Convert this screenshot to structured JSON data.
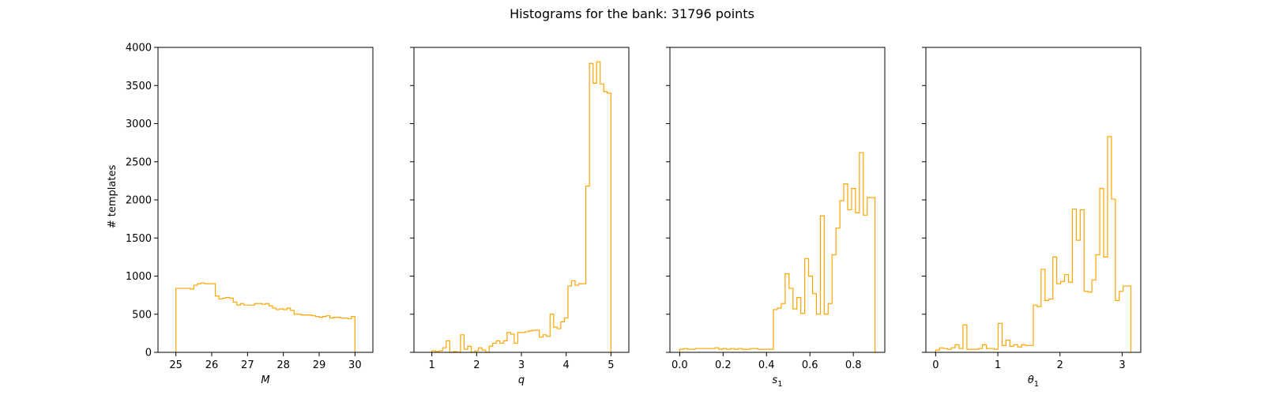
{
  "figure": {
    "title": "Histograms for the bank: 31796 points",
    "ylabel": "# templates",
    "line_color": "#ffa500"
  },
  "chart_data": [
    {
      "type": "histogram",
      "name": "M",
      "xlabel": "M",
      "xlabel_main": "M",
      "xlabel_sub": "",
      "xlim": [
        24.5,
        30.5
      ],
      "ylim": [
        0,
        4000
      ],
      "xticks": [
        25,
        26,
        27,
        28,
        29,
        30
      ],
      "xtick_labels": [
        "25",
        "26",
        "27",
        "28",
        "29",
        "30"
      ],
      "yticks": [
        0,
        500,
        1000,
        1500,
        2000,
        2500,
        3000,
        3500,
        4000
      ],
      "ytick_labels": [
        "0",
        "500",
        "1000",
        "1500",
        "2000",
        "2500",
        "3000",
        "3500",
        "4000"
      ],
      "bins": [
        25,
        30
      ],
      "values": [
        840,
        840,
        840,
        840,
        830,
        880,
        900,
        910,
        900,
        900,
        900,
        740,
        700,
        710,
        720,
        710,
        660,
        620,
        640,
        620,
        620,
        620,
        640,
        640,
        630,
        640,
        610,
        580,
        560,
        570,
        560,
        580,
        550,
        500,
        500,
        490,
        490,
        490,
        480,
        470,
        460,
        470,
        480,
        450,
        460,
        460,
        450,
        450,
        440,
        470
      ]
    },
    {
      "type": "histogram",
      "name": "q",
      "xlabel": "q",
      "xlabel_main": "q",
      "xlabel_sub": "",
      "xlim": [
        0.6,
        5.4
      ],
      "ylim": [
        0,
        4000
      ],
      "xticks": [
        1,
        2,
        3,
        4,
        5
      ],
      "xtick_labels": [
        "1",
        "2",
        "3",
        "4",
        "5"
      ],
      "bins": [
        1,
        5
      ],
      "values": [
        20,
        10,
        20,
        60,
        150,
        0,
        10,
        0,
        230,
        40,
        80,
        0,
        20,
        60,
        30,
        0,
        80,
        120,
        150,
        120,
        150,
        260,
        240,
        120,
        260,
        260,
        270,
        280,
        290,
        290,
        200,
        230,
        210,
        500,
        330,
        310,
        400,
        450,
        870,
        940,
        880,
        900,
        900,
        2180,
        3790,
        3530,
        3810,
        3520,
        3420,
        3400
      ]
    },
    {
      "type": "histogram",
      "name": "s1",
      "xlabel": "s1",
      "xlabel_main": "s",
      "xlabel_sub": "1",
      "xlim": [
        -0.045,
        0.945
      ],
      "ylim": [
        0,
        4000
      ],
      "xticks": [
        0.0,
        0.2,
        0.4,
        0.6,
        0.8
      ],
      "xtick_labels": [
        "0.0",
        "0.2",
        "0.4",
        "0.6",
        "0.8"
      ],
      "bins": [
        0.0,
        0.9
      ],
      "values": [
        40,
        50,
        40,
        40,
        50,
        50,
        50,
        50,
        50,
        60,
        40,
        50,
        40,
        50,
        40,
        50,
        40,
        40,
        50,
        50,
        40,
        40,
        40,
        40,
        560,
        580,
        640,
        1030,
        840,
        570,
        720,
        510,
        1230,
        1000,
        770,
        500,
        1790,
        500,
        640,
        1280,
        1630,
        1990,
        2210,
        1870,
        2150,
        1830,
        2620,
        1800,
        2030,
        2030
      ]
    },
    {
      "type": "histogram",
      "name": "theta1",
      "xlabel": "θ1",
      "xlabel_main": "θ",
      "xlabel_sub": "1",
      "xlim": [
        -0.157,
        3.299
      ],
      "ylim": [
        0,
        4000
      ],
      "xticks": [
        0,
        1,
        2,
        3
      ],
      "xtick_labels": [
        "0",
        "1",
        "2",
        "3"
      ],
      "bins": [
        0,
        3.1416
      ],
      "values": [
        30,
        60,
        50,
        40,
        60,
        100,
        50,
        360,
        40,
        40,
        40,
        50,
        100,
        50,
        50,
        40,
        380,
        90,
        160,
        80,
        100,
        70,
        100,
        90,
        90,
        620,
        600,
        1090,
        680,
        700,
        1250,
        900,
        930,
        1020,
        920,
        1880,
        1470,
        1870,
        800,
        790,
        950,
        1280,
        2150,
        1250,
        2830,
        2010,
        680,
        800,
        870,
        870
      ]
    }
  ]
}
